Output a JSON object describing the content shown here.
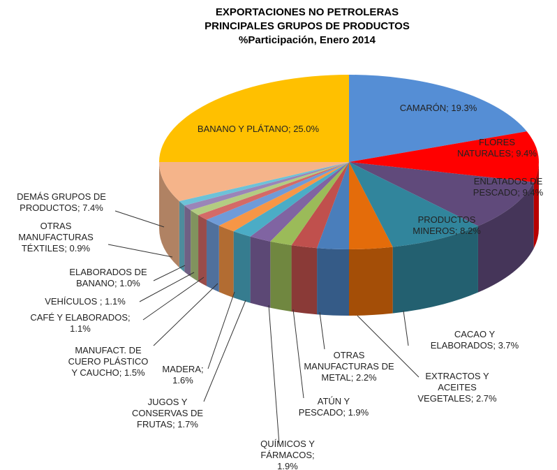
{
  "chart_data": {
    "type": "pie",
    "title": [
      "EXPORTACIONES NO PETROLERAS",
      "PRINCIPALES GRUPOS DE PRODUCTOS",
      "%Participación, Enero 2014"
    ],
    "values": [
      19.3,
      9.4,
      9.4,
      8.2,
      3.7,
      2.7,
      2.2,
      1.9,
      1.9,
      1.7,
      1.6,
      1.5,
      1.1,
      1.1,
      1.0,
      0.9,
      7.4,
      25.0
    ],
    "value_labels": [
      "CAMARÓN; 19.3%",
      "FLORES NATURALES; 9.4%",
      "ENLATADOS DE PESCADO; 9.4%",
      "PRODUCTOS MINEROS; 8.2%",
      "CACAO Y ELABORADOS; 3.7%",
      "EXTRACTOS Y ACEITES VEGETALES; 2.7%",
      "OTRAS MANUFACTURAS DE METAL; 2.2%",
      "ATÚN Y PESCADO; 1.9%",
      "QUÍMICOS Y FÁRMACOS; 1.9%",
      "JUGOS Y CONSERVAS DE FRUTAS; 1.7%",
      "MADERA; 1.6%",
      "MANUFACT. DE CUERO PLÁSTICO Y CAUCHO; 1.5%",
      "CAFÉ Y ELABORADOS; 1.1%",
      "VEHÍCULOS ; 1.1%",
      "ELABORADOS DE BANANO; 1.0%",
      "OTRAS MANUFACTURAS TÉXTILES; 0.9%",
      "DEMÁS GRUPOS DE PRODUCTOS; 7.4%",
      "BANANO Y PLÁTANO; 25.0%"
    ],
    "colors": [
      "#558ed5",
      "#ff0000",
      "#604a7b",
      "#31859c",
      "#e46c0a",
      "#4a7ebb",
      "#c0504d",
      "#9bbb59",
      "#8064a2",
      "#4bacc6",
      "#f79646",
      "#6f9bd8",
      "#d46a67",
      "#b3cc82",
      "#9a85b8",
      "#6dc2d8",
      "#f5b48a",
      "#ffc000"
    ]
  }
}
